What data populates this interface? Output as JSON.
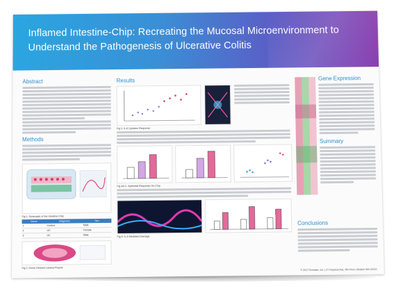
{
  "poster": {
    "title": "Inflamed Intestine-Chip: Recreating the Mucosal Microenvironment to Understand the Pathogenesis of Ulcerative Colitis",
    "sections": {
      "abstract": "Abstract",
      "methods": "Methods",
      "results": "Results",
      "gene_expression": "Gene Expression",
      "summary": "Summary",
      "conclusions": "Conclusions"
    },
    "captions": {
      "fig1": "Fig 1. Schematic of the Intestine-Chip",
      "fig2": "Fig 2. Donor Derived Lamina Propria",
      "fig3": "Fig 3. IL-6 Cytokine Response",
      "fig4": "Fig 4A-C. Epithelial Response On-Chip",
      "fig5": "Fig 5. IL-6 Mediated Damage"
    },
    "table": {
      "headers": [
        "Donor",
        "Diagnosis",
        "Sex"
      ],
      "rows": [
        [
          "1",
          "Control",
          "Male"
        ],
        [
          "2",
          "UC",
          "Female"
        ],
        [
          "3",
          "UC",
          "Male"
        ]
      ]
    },
    "footer": "© 2017 Emulate, Inc. | 27 Drydock Ave, 5th Floor | Boston MA 02210",
    "colors": {
      "banner_start": "#2aa6e0",
      "banner_end": "#8a3fb0",
      "heading": "#2b8ed0"
    }
  }
}
